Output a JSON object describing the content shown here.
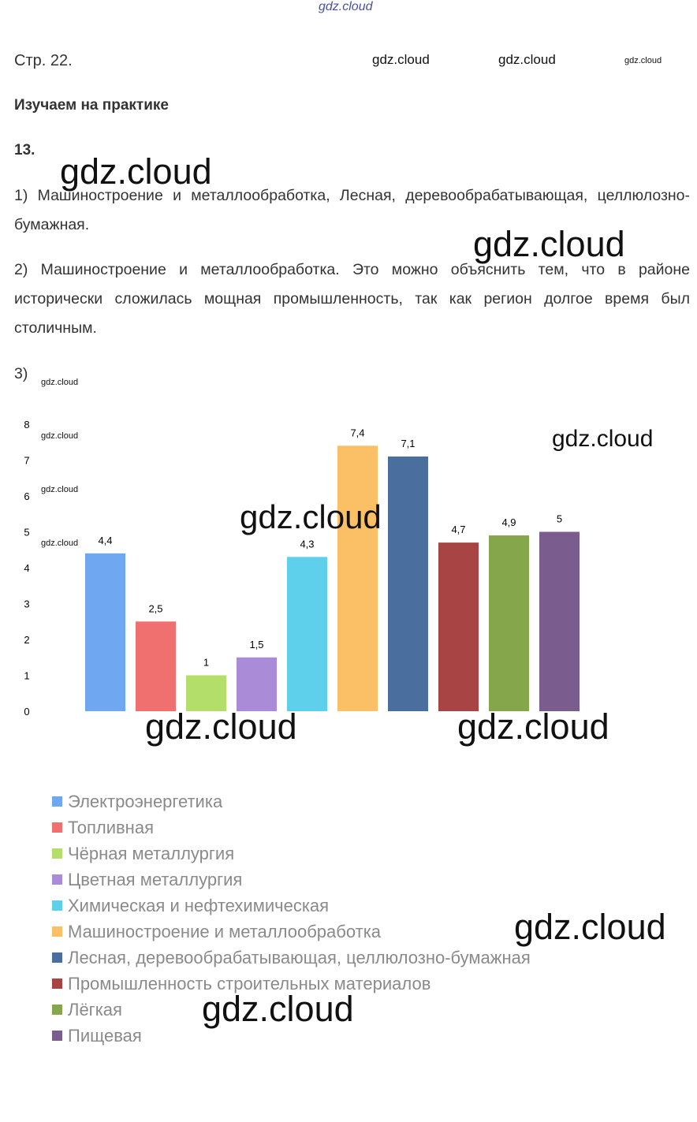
{
  "watermarks": {
    "top": "gdz.cloud",
    "header1": "gdz.cloud",
    "header2": "gdz.cloud",
    "header_small": "gdz.cloud",
    "big1": "gdz.cloud",
    "big2": "gdz.cloud",
    "chart_small1": "gdz.cloud",
    "chart_small2": "gdz.cloud",
    "chart_small3": "gdz.cloud",
    "chart_small4": "gdz.cloud",
    "chart_right": "gdz.cloud",
    "chart_center": "gdz.cloud",
    "bottom1": "gdz.cloud",
    "bottom2": "gdz.cloud",
    "legend1": "gdz.cloud",
    "legend2": "gdz.cloud"
  },
  "page": {
    "page_ref": "Стр. 22.",
    "section": "Изучаем на практике",
    "task": "13.",
    "answer1": "1)  Машиностроение  и  металлообработка,  Лесная,  деревообрабатывающая, целлюлозно-бумажная.",
    "answer2": "2) Машиностроение и металлообработка. Это можно объяснить тем, что в районе исторически сложилась мощная промышленность, так как регион долгое время был столичным.",
    "answer3": "3)"
  },
  "chart_data": {
    "type": "bar",
    "ylim": [
      0,
      8
    ],
    "yticks": [
      "0",
      "1",
      "2",
      "3",
      "4",
      "5",
      "6",
      "7",
      "8"
    ],
    "series": [
      {
        "name": "Электроэнергетика",
        "value": 4.4,
        "label": "4,4",
        "color": "#6fa8f0"
      },
      {
        "name": "Топливная",
        "value": 2.5,
        "label": "2,5",
        "color": "#f07070"
      },
      {
        "name": "Чёрная металлургия",
        "value": 1,
        "label": "1",
        "color": "#b4de6a"
      },
      {
        "name": "Цветная металлургия",
        "value": 1.5,
        "label": "1,5",
        "color": "#a98bd8"
      },
      {
        "name": "Химическая и нефтехимическая",
        "value": 4.3,
        "label": "4,3",
        "color": "#5fd0ec"
      },
      {
        "name": "Машиностроение и металлообработка",
        "value": 7.4,
        "label": "7,4",
        "color": "#fbc066"
      },
      {
        "name": "Лесная, деревообрабатывающая, целлюлозно-бумажная",
        "value": 7.1,
        "label": "7,1",
        "color": "#4a6f9e"
      },
      {
        "name": "Промышленность строительных материалов",
        "value": 4.7,
        "label": "4,7",
        "color": "#a84444"
      },
      {
        "name": "Лёгкая",
        "value": 4.9,
        "label": "4,9",
        "color": "#86a64c"
      },
      {
        "name": "Пищевая",
        "value": 5,
        "label": "5",
        "color": "#7a5d8e"
      }
    ]
  }
}
